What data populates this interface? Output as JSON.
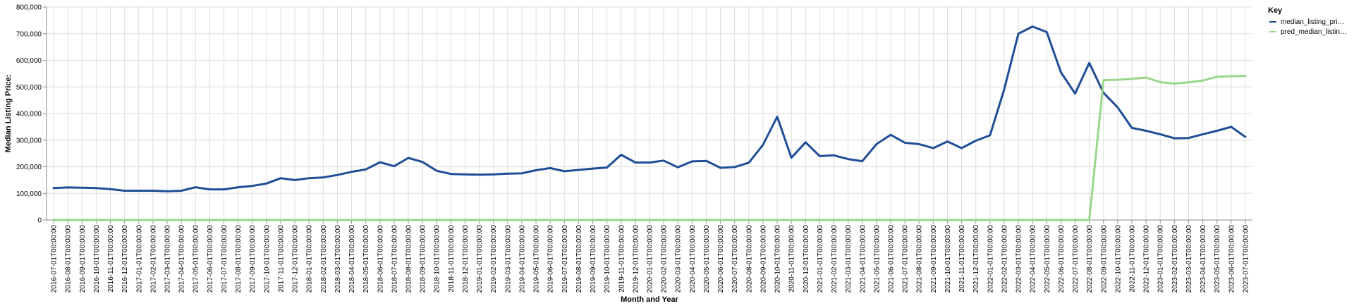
{
  "chart_data": {
    "type": "line",
    "xlabel": "Month and Year",
    "ylabel": "Median Listing Price:",
    "ylim": [
      0,
      800000
    ],
    "yticks": [
      "0",
      "100,000",
      "200,000",
      "300,000",
      "400,000",
      "500,000",
      "600,000",
      "700,000",
      "800,000"
    ],
    "grid": true,
    "legend": {
      "title": "Key",
      "position": "right",
      "entries": [
        "median_listing_pri…",
        "pred_median_listin…"
      ]
    },
    "x": [
      "2016-07-01T00:00:00",
      "2016-08-01T00:00:00",
      "2016-09-01T00:00:00",
      "2016-10-01T00:00:00",
      "2016-11-01T00:00:00",
      "2016-12-01T00:00:00",
      "2017-01-01T00:00:00",
      "2017-02-01T00:00:00",
      "2017-03-01T00:00:00",
      "2017-04-01T00:00:00",
      "2017-05-01T00:00:00",
      "2017-06-01T00:00:00",
      "2017-07-01T00:00:00",
      "2017-08-01T00:00:00",
      "2017-09-01T00:00:00",
      "2017-10-01T00:00:00",
      "2017-11-01T00:00:00",
      "2017-12-01T00:00:00",
      "2018-01-01T00:00:00",
      "2018-02-01T00:00:00",
      "2018-03-01T00:00:00",
      "2018-04-01T00:00:00",
      "2018-05-01T00:00:00",
      "2018-06-01T00:00:00",
      "2018-07-01T00:00:00",
      "2018-08-01T00:00:00",
      "2018-09-01T00:00:00",
      "2018-10-01T00:00:00",
      "2018-11-01T00:00:00",
      "2018-12-01T00:00:00",
      "2019-01-01T00:00:00",
      "2019-02-01T00:00:00",
      "2019-03-01T00:00:00",
      "2019-04-01T00:00:00",
      "2019-05-01T00:00:00",
      "2019-06-01T00:00:00",
      "2019-07-01T00:00:00",
      "2019-08-01T00:00:00",
      "2019-09-01T00:00:00",
      "2019-10-01T00:00:00",
      "2019-11-01T00:00:00",
      "2019-12-01T00:00:00",
      "2020-01-01T00:00:00",
      "2020-02-01T00:00:00",
      "2020-03-01T00:00:00",
      "2020-04-01T00:00:00",
      "2020-05-01T00:00:00",
      "2020-06-01T00:00:00",
      "2020-07-01T00:00:00",
      "2020-08-01T00:00:00",
      "2020-09-01T00:00:00",
      "2020-10-01T00:00:00",
      "2020-11-01T00:00:00",
      "2020-12-01T00:00:00",
      "2021-01-01T00:00:00",
      "2021-02-01T00:00:00",
      "2021-03-01T00:00:00",
      "2021-04-01T00:00:00",
      "2021-05-01T00:00:00",
      "2021-06-01T00:00:00",
      "2021-07-01T00:00:00",
      "2021-08-01T00:00:00",
      "2021-09-01T00:00:00",
      "2021-10-01T00:00:00",
      "2021-11-01T00:00:00",
      "2021-12-01T00:00:00",
      "2022-01-01T00:00:00",
      "2022-02-01T00:00:00",
      "2022-03-01T00:00:00",
      "2022-04-01T00:00:00",
      "2022-05-01T00:00:00",
      "2022-06-01T00:00:00",
      "2022-07-01T00:00:00",
      "2022-08-01T00:00:00",
      "2022-09-01T00:00:00",
      "2022-10-01T00:00:00",
      "2022-11-01T00:00:00",
      "2022-12-01T00:00:00",
      "2023-01-01T00:00:00",
      "2023-02-01T00:00:00",
      "2023-03-01T00:00:00",
      "2023-04-01T00:00:00",
      "2023-05-01T00:00:00",
      "2023-06-01T00:00:00",
      "2023-07-01T00:00:00"
    ],
    "series": [
      {
        "name": "median_listing_pri…",
        "color": "#1f4e96",
        "values": [
          120000,
          122000,
          121000,
          120000,
          116000,
          110000,
          110000,
          110000,
          108000,
          110000,
          123000,
          115000,
          115000,
          123000,
          128000,
          137000,
          157000,
          150000,
          157000,
          160000,
          169000,
          181000,
          190000,
          217000,
          202000,
          233000,
          218000,
          185000,
          173000,
          171000,
          170000,
          171000,
          174000,
          175000,
          187000,
          195000,
          183000,
          188000,
          193000,
          197000,
          245000,
          216000,
          216000,
          223000,
          198000,
          220000,
          222000,
          196000,
          199000,
          215000,
          282000,
          388000,
          234000,
          292000,
          240000,
          243000,
          229000,
          221000,
          285000,
          320000,
          290000,
          285000,
          270000,
          295000,
          270000,
          298000,
          318000,
          490000,
          700000,
          727000,
          706000,
          555000,
          475000,
          590000,
          478000,
          423000,
          346000,
          335000,
          322000,
          307000,
          308000,
          322000,
          335000,
          350000,
          312000
        ]
      },
      {
        "name": "pred_median_listin…",
        "color": "#98d68c",
        "values": [
          0,
          0,
          0,
          0,
          0,
          0,
          0,
          0,
          0,
          0,
          0,
          0,
          0,
          0,
          0,
          0,
          0,
          0,
          0,
          0,
          0,
          0,
          0,
          0,
          0,
          0,
          0,
          0,
          0,
          0,
          0,
          0,
          0,
          0,
          0,
          0,
          0,
          0,
          0,
          0,
          0,
          0,
          0,
          0,
          0,
          0,
          0,
          0,
          0,
          0,
          0,
          0,
          0,
          0,
          0,
          0,
          0,
          0,
          0,
          0,
          0,
          0,
          0,
          0,
          0,
          0,
          0,
          0,
          0,
          0,
          0,
          0,
          0,
          0,
          525000,
          527000,
          530000,
          535000,
          518000,
          512000,
          517000,
          524000,
          538000,
          540000,
          541000
        ]
      }
    ]
  }
}
